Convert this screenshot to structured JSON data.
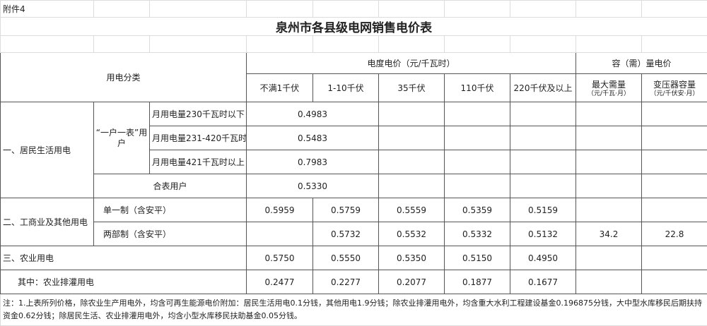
{
  "attachment_label": "附件4",
  "title": "泉州市各县级电网销售电价表",
  "header": {
    "category": "用电分类",
    "energy_price": "电度电价（元/千瓦时）",
    "capacity_price": "容（需）量电价",
    "voltage_levels": [
      "不满1千伏",
      "1-10千伏",
      "35千伏",
      "110千伏",
      "220千伏及以上"
    ],
    "max_demand": "最大需量",
    "max_demand_unit": "（元/千瓦·月）",
    "transformer_capacity": "变压器容量",
    "transformer_capacity_unit": "（元/千伏安·月）"
  },
  "residential": {
    "label": "一、居民生活用电",
    "single_meter": "“一户一表”用户",
    "tiers": [
      {
        "label": "月用电量230千瓦时以下",
        "price": "0.4983"
      },
      {
        "label": "月用电量231-420千瓦时",
        "price": "0.5483"
      },
      {
        "label": "月用电量421千瓦时以上",
        "price": "0.7983"
      }
    ],
    "shared_meter": {
      "label": "合表用户",
      "price": "0.5330"
    }
  },
  "commercial": {
    "label": "二、工商业及其他用电",
    "single": {
      "label": "单一制（含安平）",
      "prices": [
        "0.5959",
        "0.5759",
        "0.5559",
        "0.5359",
        "0.5159"
      ]
    },
    "two_part": {
      "label": "两部制（含安平）",
      "prices": [
        "",
        "0.5732",
        "0.5532",
        "0.5332",
        "0.5132"
      ],
      "max_demand": "34.2",
      "transformer": "22.8"
    }
  },
  "agriculture": {
    "label": "三、农业用电",
    "prices": [
      "0.5750",
      "0.5550",
      "0.5350",
      "0.5150",
      "0.4950"
    ],
    "irrigation": {
      "label": "其中：农业排灌用电",
      "prices": [
        "0.2477",
        "0.2277",
        "0.2077",
        "0.1877",
        "0.1677"
      ]
    }
  },
  "note": "注：1.上表所列价格，除农业生产用电外，均含可再生能源电价附加：居民生活用电0.1分钱，其他用电1.9分钱；除农业排灌用电外，均含重大水利工程建设基金0.196875分钱，大中型水库移民后期扶持资金0.62分钱；除居民生活、农业排灌用电外，均含小型水库移民扶助基金0.05分钱。"
}
